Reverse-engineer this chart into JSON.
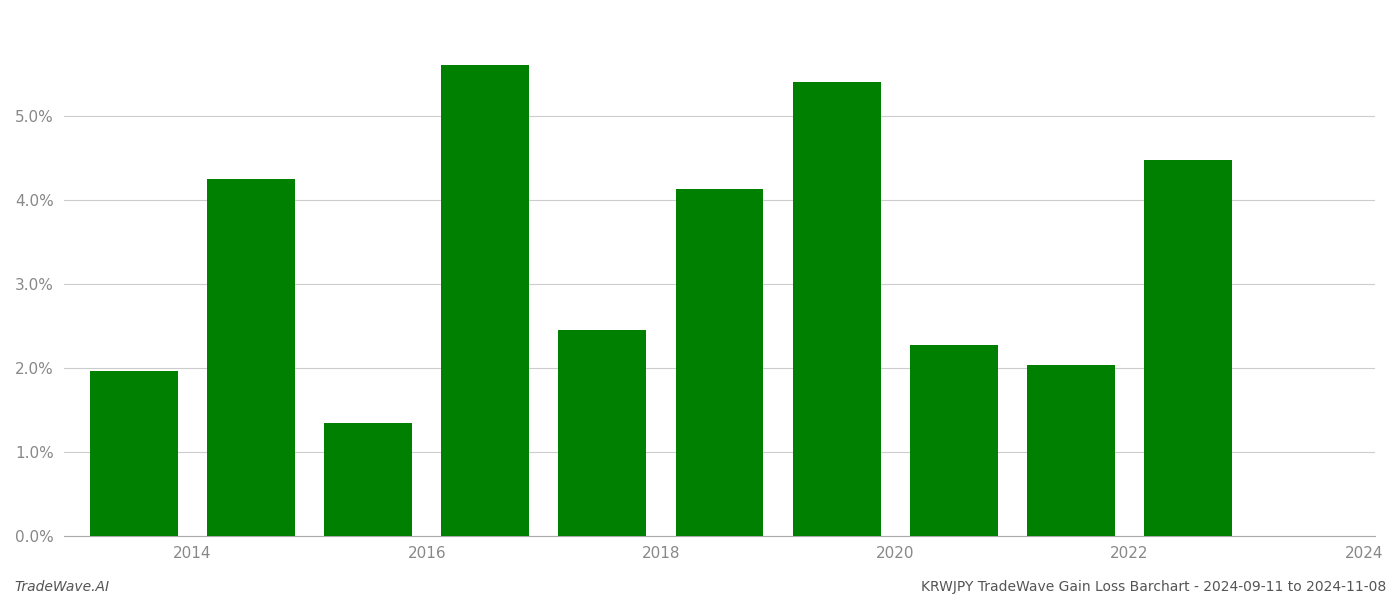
{
  "bar_positions": [
    0,
    1,
    2,
    3,
    4,
    5,
    6,
    7,
    8,
    9
  ],
  "values": [
    0.0197,
    0.0425,
    0.0135,
    0.056,
    0.0245,
    0.0413,
    0.054,
    0.0227,
    0.0204,
    0.0447
  ],
  "xtick_positions": [
    0.5,
    2.5,
    4.5,
    6.5,
    8.5,
    10.5
  ],
  "xtick_labels": [
    "2014",
    "2016",
    "2018",
    "2020",
    "2022",
    "2024"
  ],
  "bar_color": "#008000",
  "background_color": "#ffffff",
  "ylim": [
    0,
    0.062
  ],
  "yticks": [
    0.0,
    0.01,
    0.02,
    0.03,
    0.04,
    0.05
  ],
  "grid_color": "#cccccc",
  "bar_width": 0.75,
  "xlim": [
    -0.6,
    10.6
  ],
  "footer_left": "TradeWave.AI",
  "footer_right": "KRWJPY TradeWave Gain Loss Barchart - 2024-09-11 to 2024-11-08",
  "figsize": [
    14.0,
    6.0
  ],
  "dpi": 100
}
